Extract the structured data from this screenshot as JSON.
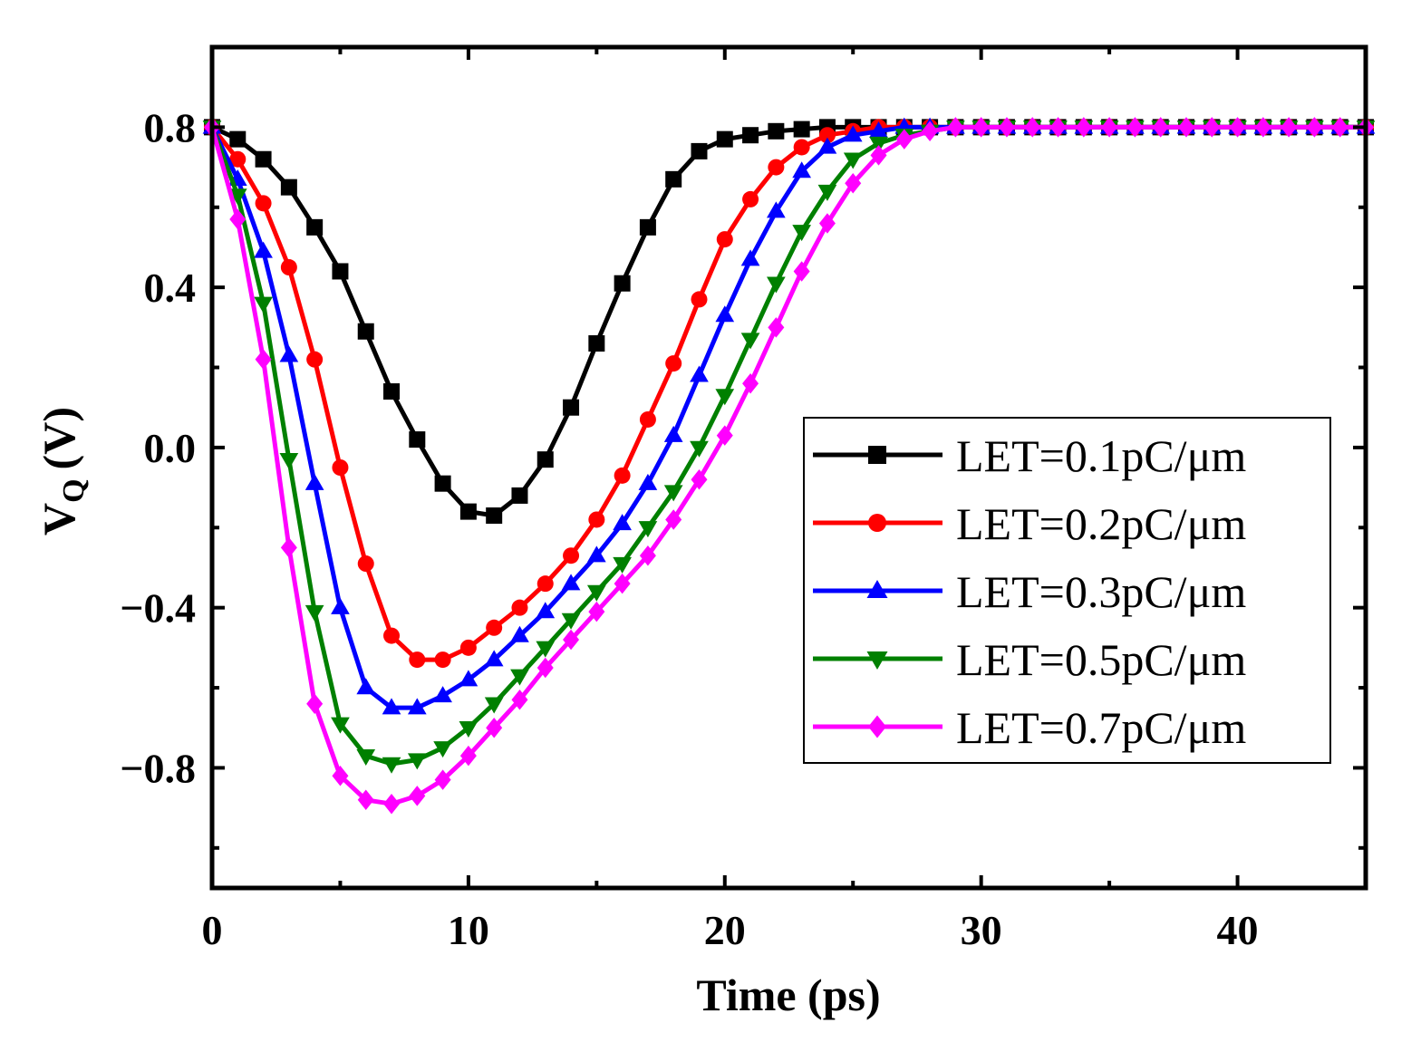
{
  "chart_data": {
    "type": "line",
    "title": "",
    "xlabel": "Time (ps)",
    "ylabel_main": "V",
    "ylabel_sub": "Q",
    "ylabel_unit": "(V)",
    "xlim": [
      0,
      45
    ],
    "ylim": [
      -1.1,
      1.0
    ],
    "x_ticks": [
      0,
      10,
      20,
      30,
      40
    ],
    "x_tick_labels": [
      "0",
      "10",
      "20",
      "30",
      "40"
    ],
    "y_ticks": [
      0.8,
      0.4,
      0.0,
      -0.4,
      -0.8
    ],
    "y_tick_labels": [
      "0.8",
      "0.4",
      "0.0",
      "−0.4",
      "−0.8"
    ],
    "grid": false,
    "legend_position": "center-right",
    "x": [
      0,
      1,
      2,
      3,
      4,
      5,
      6,
      7,
      8,
      9,
      10,
      11,
      12,
      13,
      14,
      15,
      16,
      17,
      18,
      19,
      20,
      21,
      22,
      23,
      24,
      25,
      26,
      27,
      28,
      29,
      30,
      31,
      32,
      33,
      34,
      35,
      36,
      37,
      38,
      39,
      40,
      41,
      42,
      43,
      44,
      45
    ],
    "series": [
      {
        "name": "LET=0.1pC/μm",
        "color": "#000000",
        "marker": "square",
        "values": [
          0.8,
          0.77,
          0.72,
          0.65,
          0.55,
          0.44,
          0.29,
          0.14,
          0.02,
          -0.09,
          -0.16,
          -0.17,
          -0.12,
          -0.03,
          0.1,
          0.26,
          0.41,
          0.55,
          0.67,
          0.74,
          0.77,
          0.78,
          0.79,
          0.795,
          0.8,
          0.8,
          0.8,
          0.8,
          0.8,
          0.8,
          0.8,
          0.8,
          0.8,
          0.8,
          0.8,
          0.8,
          0.8,
          0.8,
          0.8,
          0.8,
          0.8,
          0.8,
          0.8,
          0.8,
          0.8,
          0.8
        ]
      },
      {
        "name": "LET=0.2pC/μm",
        "color": "#ff0000",
        "marker": "circle",
        "values": [
          0.8,
          0.72,
          0.61,
          0.45,
          0.22,
          -0.05,
          -0.29,
          -0.47,
          -0.53,
          -0.53,
          -0.5,
          -0.45,
          -0.4,
          -0.34,
          -0.27,
          -0.18,
          -0.07,
          0.07,
          0.21,
          0.37,
          0.52,
          0.62,
          0.7,
          0.75,
          0.78,
          0.79,
          0.8,
          0.8,
          0.8,
          0.8,
          0.8,
          0.8,
          0.8,
          0.8,
          0.8,
          0.8,
          0.8,
          0.8,
          0.8,
          0.8,
          0.8,
          0.8,
          0.8,
          0.8,
          0.8,
          0.8
        ]
      },
      {
        "name": "LET=0.3pC/μm",
        "color": "#0000ff",
        "marker": "triangle-up",
        "values": [
          0.8,
          0.67,
          0.49,
          0.23,
          -0.09,
          -0.4,
          -0.6,
          -0.65,
          -0.65,
          -0.62,
          -0.58,
          -0.53,
          -0.47,
          -0.41,
          -0.34,
          -0.27,
          -0.19,
          -0.09,
          0.03,
          0.18,
          0.33,
          0.47,
          0.59,
          0.69,
          0.75,
          0.78,
          0.79,
          0.8,
          0.8,
          0.8,
          0.8,
          0.8,
          0.8,
          0.8,
          0.8,
          0.8,
          0.8,
          0.8,
          0.8,
          0.8,
          0.8,
          0.8,
          0.8,
          0.8,
          0.8,
          0.8
        ]
      },
      {
        "name": "LET=0.5pC/μm",
        "color": "#008000",
        "marker": "triangle-down",
        "values": [
          0.8,
          0.63,
          0.36,
          -0.03,
          -0.41,
          -0.69,
          -0.77,
          -0.79,
          -0.78,
          -0.75,
          -0.7,
          -0.64,
          -0.57,
          -0.5,
          -0.43,
          -0.36,
          -0.29,
          -0.2,
          -0.11,
          0.0,
          0.13,
          0.27,
          0.41,
          0.54,
          0.64,
          0.72,
          0.76,
          0.78,
          0.79,
          0.8,
          0.8,
          0.8,
          0.8,
          0.8,
          0.8,
          0.8,
          0.8,
          0.8,
          0.8,
          0.8,
          0.8,
          0.8,
          0.8,
          0.8,
          0.8,
          0.8
        ]
      },
      {
        "name": "LET=0.7pC/μm",
        "color": "#ff00ff",
        "marker": "diamond",
        "values": [
          0.8,
          0.57,
          0.22,
          -0.25,
          -0.64,
          -0.82,
          -0.88,
          -0.89,
          -0.87,
          -0.83,
          -0.77,
          -0.7,
          -0.63,
          -0.55,
          -0.48,
          -0.41,
          -0.34,
          -0.27,
          -0.18,
          -0.08,
          0.03,
          0.16,
          0.3,
          0.44,
          0.56,
          0.66,
          0.73,
          0.77,
          0.79,
          0.8,
          0.8,
          0.8,
          0.8,
          0.8,
          0.8,
          0.8,
          0.8,
          0.8,
          0.8,
          0.8,
          0.8,
          0.8,
          0.8,
          0.8,
          0.8,
          0.8
        ]
      }
    ]
  }
}
